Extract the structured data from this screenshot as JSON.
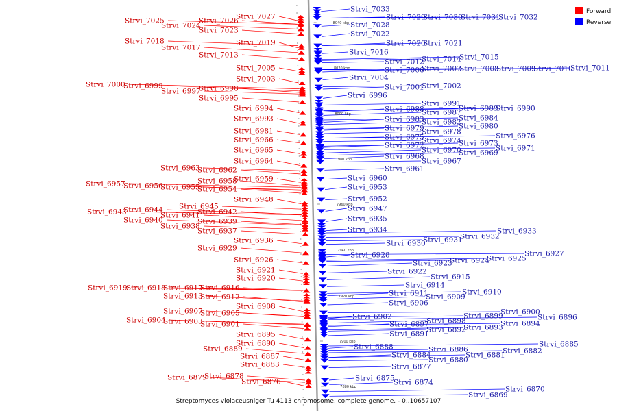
{
  "caption": "Streptomyces violaceusniger Tu 4113 chromosome, complete genome. - 0..10657107",
  "legend": {
    "forward": {
      "label": "Forward",
      "color": "#ff0000"
    },
    "reverse": {
      "label": "Reverse",
      "color": "#0000ff"
    }
  },
  "ticks": [
    "8040 kbp",
    "8020 kbp",
    "8000 kbp",
    "7980 kbp",
    "7960 kbp",
    "7940 kbp",
    "7920 kbp",
    "7900 kbp",
    "7880 kbp"
  ],
  "forward_labels": [
    "Strvi_7027",
    "Strvi_7025",
    "Strvi_7026",
    "Strvi_7024",
    "Strvi_7023",
    "Strvi_7018",
    "Strvi_7019",
    "Strvi_7017",
    "Strvi_7013",
    "Strvi_7005",
    "Strvi_7003",
    "Strvi_7000",
    "Strvi_6999",
    "Strvi_6998",
    "Strvi_6997",
    "Strvi_6995",
    "Strvi_6994",
    "Strvi_6993",
    "Strvi_6981",
    "Strvi_6966",
    "Strvi_6965",
    "Strvi_6964",
    "Strvi_6963",
    "Strvi_6962",
    "Strvi_6959",
    "Strvi_6958",
    "Strvi_6957",
    "Strvi_6956",
    "Strvi_6955",
    "Strvi_6954",
    "Strvi_6948",
    "Strvi_6945",
    "Strvi_6944",
    "Strvi_6943",
    "Strvi_6942",
    "Strvi_6941",
    "Strvi_6940",
    "Strvi_6939",
    "Strvi_6938",
    "Strvi_6937",
    "Strvi_6936",
    "Strvi_6929",
    "Strvi_6926",
    "Strvi_6921",
    "Strvi_6920",
    "Strvi_6919",
    "Strvi_6918",
    "Strvi_6917",
    "Strvi_6916",
    "Strvi_6913",
    "Strvi_6912",
    "Strvi_6908",
    "Strvi_6907",
    "Strvi_6905",
    "Strvi_6904",
    "Strvi_6903",
    "Strvi_6901",
    "Strvi_6895",
    "Strvi_6890",
    "Strvi_6889",
    "Strvi_6887",
    "Strvi_6883",
    "Strvi_6879",
    "Strvi_6878",
    "Strvi_6876"
  ],
  "reverse_labels": [
    "Strvi_7033",
    "Strvi_7029",
    "Strvi_7030",
    "Strvi_7031",
    "Strvi_7032",
    "Strvi_7028",
    "Strvi_7022",
    "Strvi_7020",
    "Strvi_7021",
    "Strvi_7016",
    "Strvi_7015",
    "Strvi_7014",
    "Strvi_7012",
    "Strvi_7011",
    "Strvi_7006",
    "Strvi_7007",
    "Strvi_7008",
    "Strvi_7009",
    "Strvi_7010",
    "Strvi_7004",
    "Strvi_7001",
    "Strvi_7002",
    "Strvi_6996",
    "Strvi_6991",
    "Strvi_6988",
    "Strvi_6989",
    "Strvi_6990",
    "Strvi_6987",
    "Strvi_6984",
    "Strvi_6983",
    "Strvi_6982",
    "Strvi_6980",
    "Strvi_6979",
    "Strvi_6978",
    "Strvi_6976",
    "Strvi_6975",
    "Strvi_6974",
    "Strvi_6973",
    "Strvi_6972",
    "Strvi_6971",
    "Strvi_6970",
    "Strvi_6969",
    "Strvi_6968",
    "Strvi_6967",
    "Strvi_6961",
    "Strvi_6960",
    "Strvi_6953",
    "Strvi_6952",
    "Strvi_6947",
    "Strvi_6935",
    "Strvi_6934",
    "Strvi_6933",
    "Strvi_6932",
    "Strvi_6931",
    "Strvi_6930",
    "Strvi_6928",
    "Strvi_6927",
    "Strvi_6925",
    "Strvi_6924",
    "Strvi_6923",
    "Strvi_6922",
    "Strvi_6915",
    "Strvi_6914",
    "Strvi_6911",
    "Strvi_6910",
    "Strvi_6909",
    "Strvi_6906",
    "Strvi_6902",
    "Strvi_6900",
    "Strvi_6899",
    "Strvi_6898",
    "Strvi_6897",
    "Strvi_6896",
    "Strvi_6894",
    "Strvi_6893",
    "Strvi_6892",
    "Strvi_6891",
    "Strvi_6888",
    "Strvi_6886",
    "Strvi_6885",
    "Strvi_6884",
    "Strvi_6882",
    "Strvi_6881",
    "Strvi_6880",
    "Strvi_6877",
    "Strvi_6875",
    "Strvi_6874",
    "Strvi_6870",
    "Strvi_6869"
  ]
}
